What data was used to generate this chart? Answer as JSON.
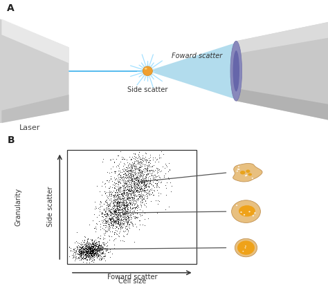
{
  "panel_A_label": "A",
  "panel_B_label": "B",
  "laser_text": "Laser",
  "side_scatter_text": "Side scatter",
  "forward_scatter_text": "Foward scatter",
  "granularity_text": "Granularity",
  "side_scatter_axis_text": "Side scatter",
  "forward_scatter_axis_text": "Foward scatter",
  "cell_size_text": "Cell size",
  "background_color": "#ffffff",
  "laser_color": "#55bbee",
  "nozzle_fill": "#d8d8d8",
  "nozzle_grad_light": "#f0f0f0",
  "detector_fill": "#bbbbcc",
  "detector_dark": "#8888aa",
  "forward_cone_color": "#88ccee",
  "particle_color": "#f0a030",
  "scatter_dot_color": "#111111",
  "cell_body_color": "#e8c090",
  "cell_outline_color": "#c89050",
  "nucleus_color": "#f0a010",
  "arrow_color": "#444444",
  "text_color": "#222222",
  "font_size_small": 7,
  "font_size_panel": 10
}
